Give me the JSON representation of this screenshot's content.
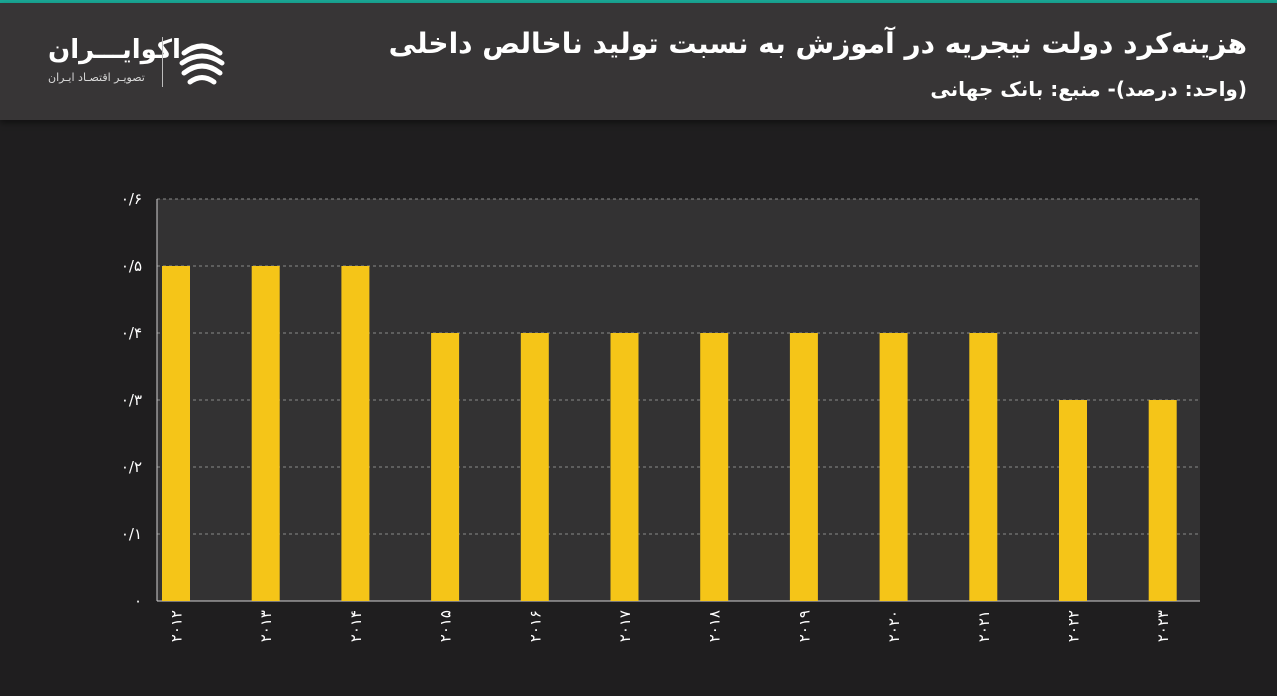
{
  "header": {
    "title": "هزینه‌کرد دولت نیجریه در آموزش به نسبت تولید ناخالص داخلی",
    "subtitle": "(واحد: درصد)- منبع: بانک جهانی"
  },
  "logo": {
    "name": "اکوایـــران",
    "tagline": "تصویـر اقتصـاد ایـران",
    "icon": "ecoiran-logo-icon"
  },
  "colors": {
    "background": "#1f1e1f",
    "header_bg": "#373536",
    "plot_bg": "#333233",
    "bar": "#f5c518",
    "accent_line": "#1aa896",
    "text": "#ffffff"
  },
  "chart_data": {
    "type": "bar",
    "categories": [
      "۲۰۱۲",
      "۲۰۱۳",
      "۲۰۱۴",
      "۲۰۱۵",
      "۲۰۱۶",
      "۲۰۱۷",
      "۲۰۱۸",
      "۲۰۱۹",
      "۲۰۲۰",
      "۲۰۲۱",
      "۲۰۲۲",
      "۲۰۲۳"
    ],
    "values": [
      0.5,
      0.5,
      0.5,
      0.4,
      0.4,
      0.4,
      0.4,
      0.4,
      0.4,
      0.4,
      0.3,
      0.3
    ],
    "ylim": [
      0,
      0.6
    ],
    "yticks": [
      0,
      0.1,
      0.2,
      0.3,
      0.4,
      0.5,
      0.6
    ],
    "ytick_labels": [
      "۰",
      "۰/۱",
      "۰/۲",
      "۰/۳",
      "۰/۴",
      "۰/۵",
      "۰/۶"
    ],
    "grid": true,
    "xlabel": "",
    "ylabel": ""
  }
}
